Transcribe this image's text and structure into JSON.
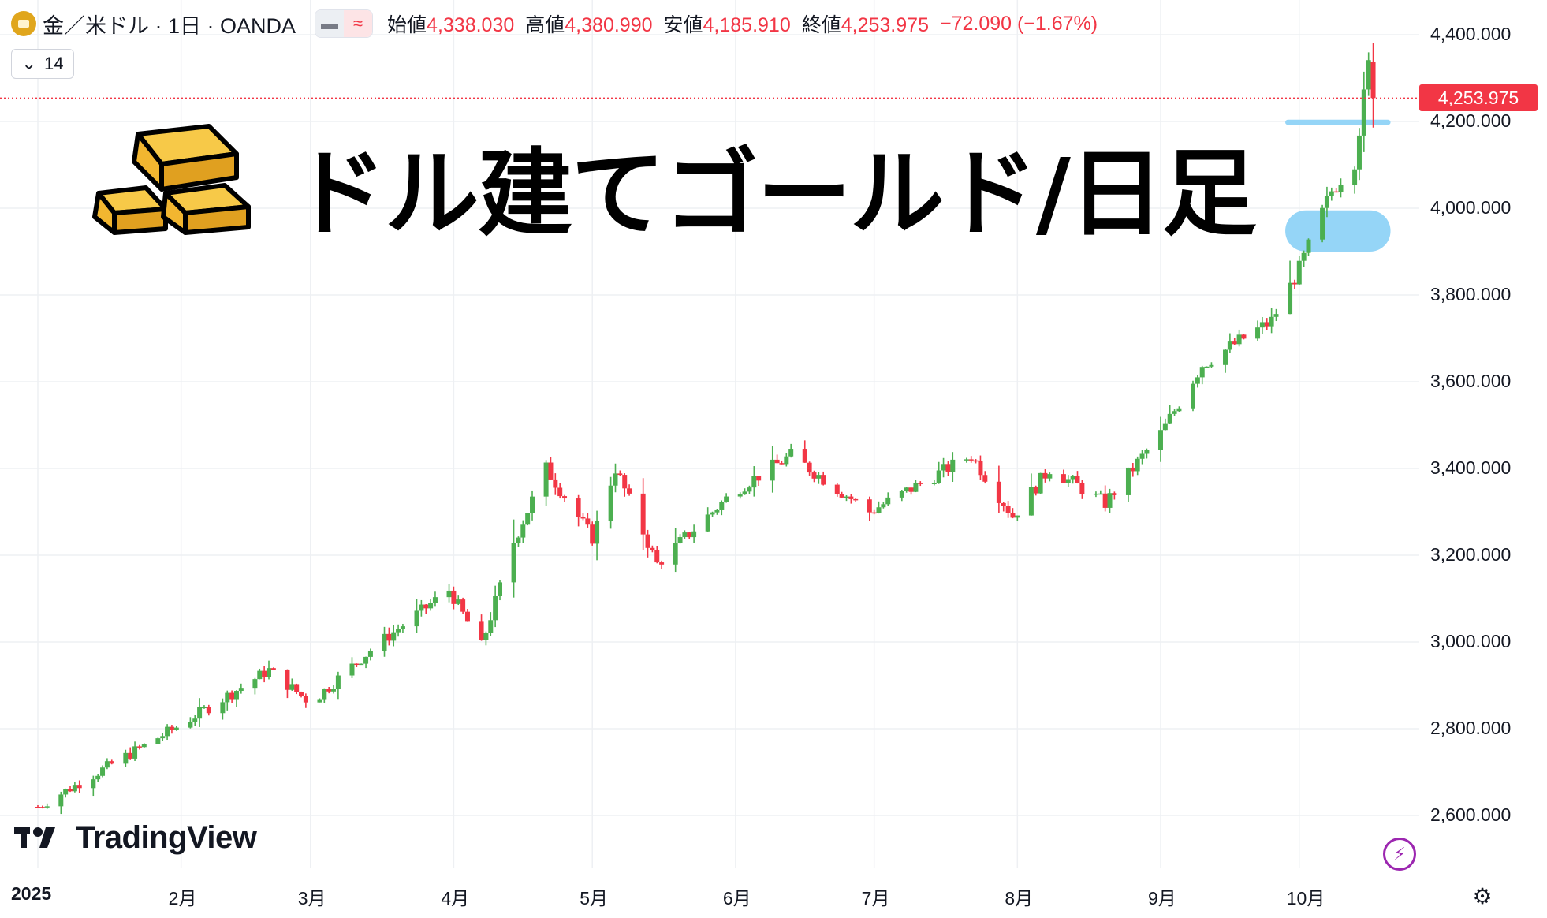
{
  "header": {
    "symbol": "金／米ドル · 1日 · OANDA",
    "pill_a": "▬",
    "pill_b": "≈",
    "open_label": "始値",
    "open": "4,338.030",
    "high_label": "高値",
    "high": "4,380.990",
    "low_label": "安値",
    "low": "4,185.910",
    "close_label": "終値",
    "close": "4,253.975",
    "change": "−72.090 (−1.67%)"
  },
  "indicator_button": {
    "chevron": "⌄",
    "value": "14"
  },
  "overlay_title": "ドル建てゴールド/日足",
  "current_price_tag": "4,253.975",
  "brand": "TradingView",
  "colors": {
    "up": "#4caf50",
    "down": "#f23645",
    "zone": "#8fd3f7",
    "accent": "#f23645"
  },
  "icons": {
    "gold": "gold-bars-icon",
    "bolt": "lightning-icon",
    "settings": "settings-gear-icon"
  },
  "chart_data": {
    "type": "candlestick",
    "y_axis": {
      "range": [
        2480,
        4480
      ],
      "ticks": [
        "4,400.000",
        "4,200.000",
        "4,000.000",
        "3,800.000",
        "3,600.000",
        "3,400.000",
        "3,200.000",
        "3,000.000",
        "2,800.000",
        "2,600.000"
      ],
      "tick_values": [
        4400,
        4200,
        4000,
        3800,
        3600,
        3400,
        3200,
        3000,
        2800,
        2600
      ]
    },
    "x_axis": {
      "labels": [
        "2025",
        "2月",
        "3月",
        "4月",
        "5月",
        "6月",
        "7月",
        "8月",
        "9月",
        "10月"
      ]
    },
    "grid": true,
    "trend_anchors": [
      [
        "2025-01-01",
        2620
      ],
      [
        "2025-02-01",
        2810
      ],
      [
        "2025-02-20",
        2935
      ],
      [
        "2025-03-01",
        2860
      ],
      [
        "2025-03-15",
        2990
      ],
      [
        "2025-03-31",
        3120
      ],
      [
        "2025-04-07",
        2990
      ],
      [
        "2025-04-14",
        3230
      ],
      [
        "2025-04-21",
        3400
      ],
      [
        "2025-05-01",
        3240
      ],
      [
        "2025-05-06",
        3400
      ],
      [
        "2025-05-15",
        3180
      ],
      [
        "2025-06-01",
        3350
      ],
      [
        "2025-06-13",
        3430
      ],
      [
        "2025-06-30",
        3300
      ],
      [
        "2025-07-22",
        3430
      ],
      [
        "2025-07-31",
        3290
      ],
      [
        "2025-08-08",
        3400
      ],
      [
        "2025-08-20",
        3320
      ],
      [
        "2025-09-01",
        3480
      ],
      [
        "2025-09-10",
        3640
      ],
      [
        "2025-09-25",
        3740
      ],
      [
        "2025-10-01",
        3860
      ],
      [
        "2025-10-08",
        4040
      ],
      [
        "2025-10-13",
        4110
      ],
      [
        "2025-10-16",
        4330
      ],
      [
        "2025-10-17",
        4254
      ]
    ],
    "last_candle": {
      "open": 4338.03,
      "high": 4380.99,
      "low": 4185.91,
      "close": 4253.975
    },
    "zones": [
      {
        "name": "support-zone",
        "from": 3900,
        "to": 3995
      },
      {
        "name": "support-line",
        "from": 4192,
        "to": 4204
      }
    ]
  }
}
